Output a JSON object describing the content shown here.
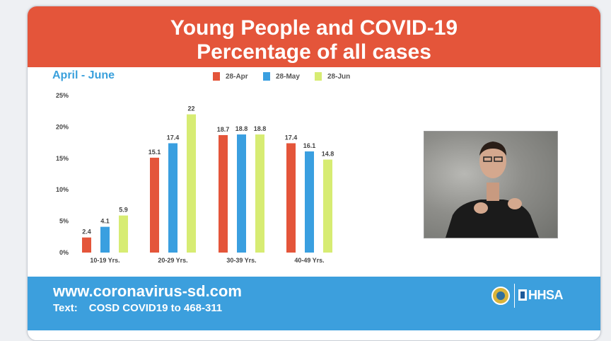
{
  "header": {
    "line1": "Young People and COVID-19",
    "line2": "Percentage of all cases"
  },
  "subtitle": "April - June",
  "colors": {
    "header_bg": "#e4553a",
    "footer_bg": "#3c9fdd",
    "subtitle": "#3aa0dc"
  },
  "chart_data": {
    "type": "bar",
    "categories": [
      "10-19 Yrs.",
      "20-29 Yrs.",
      "30-39 Yrs.",
      "40-49 Yrs."
    ],
    "series": [
      {
        "name": "28-Apr",
        "color": "#e4553a",
        "values": [
          2.4,
          15.1,
          18.7,
          17.4
        ]
      },
      {
        "name": "28-May",
        "color": "#3a9fe0",
        "values": [
          4.1,
          17.4,
          18.8,
          16.1
        ]
      },
      {
        "name": "28-Jun",
        "color": "#d7ec73",
        "values": [
          5.9,
          22,
          18.8,
          14.8
        ]
      }
    ],
    "ylim": [
      0,
      25
    ],
    "yticks": [
      "0%",
      "5%",
      "10%",
      "15%",
      "20%",
      "25%"
    ],
    "data_labels": [
      [
        "2.4",
        "15.1",
        "18.7",
        "17.4"
      ],
      [
        "4.1",
        "17.4",
        "18.8",
        "16.1"
      ],
      [
        "5.9",
        "22",
        "18.8",
        "14.8"
      ]
    ],
    "legend_position": "top",
    "grid": false
  },
  "interpreter": {
    "description": "Sign language interpreter video inset"
  },
  "footer": {
    "url": "www.coronavirus-sd.com",
    "text_label": "Text:",
    "text_value": "COSD  COVID19 to 468-311",
    "agency": "HHSA"
  }
}
